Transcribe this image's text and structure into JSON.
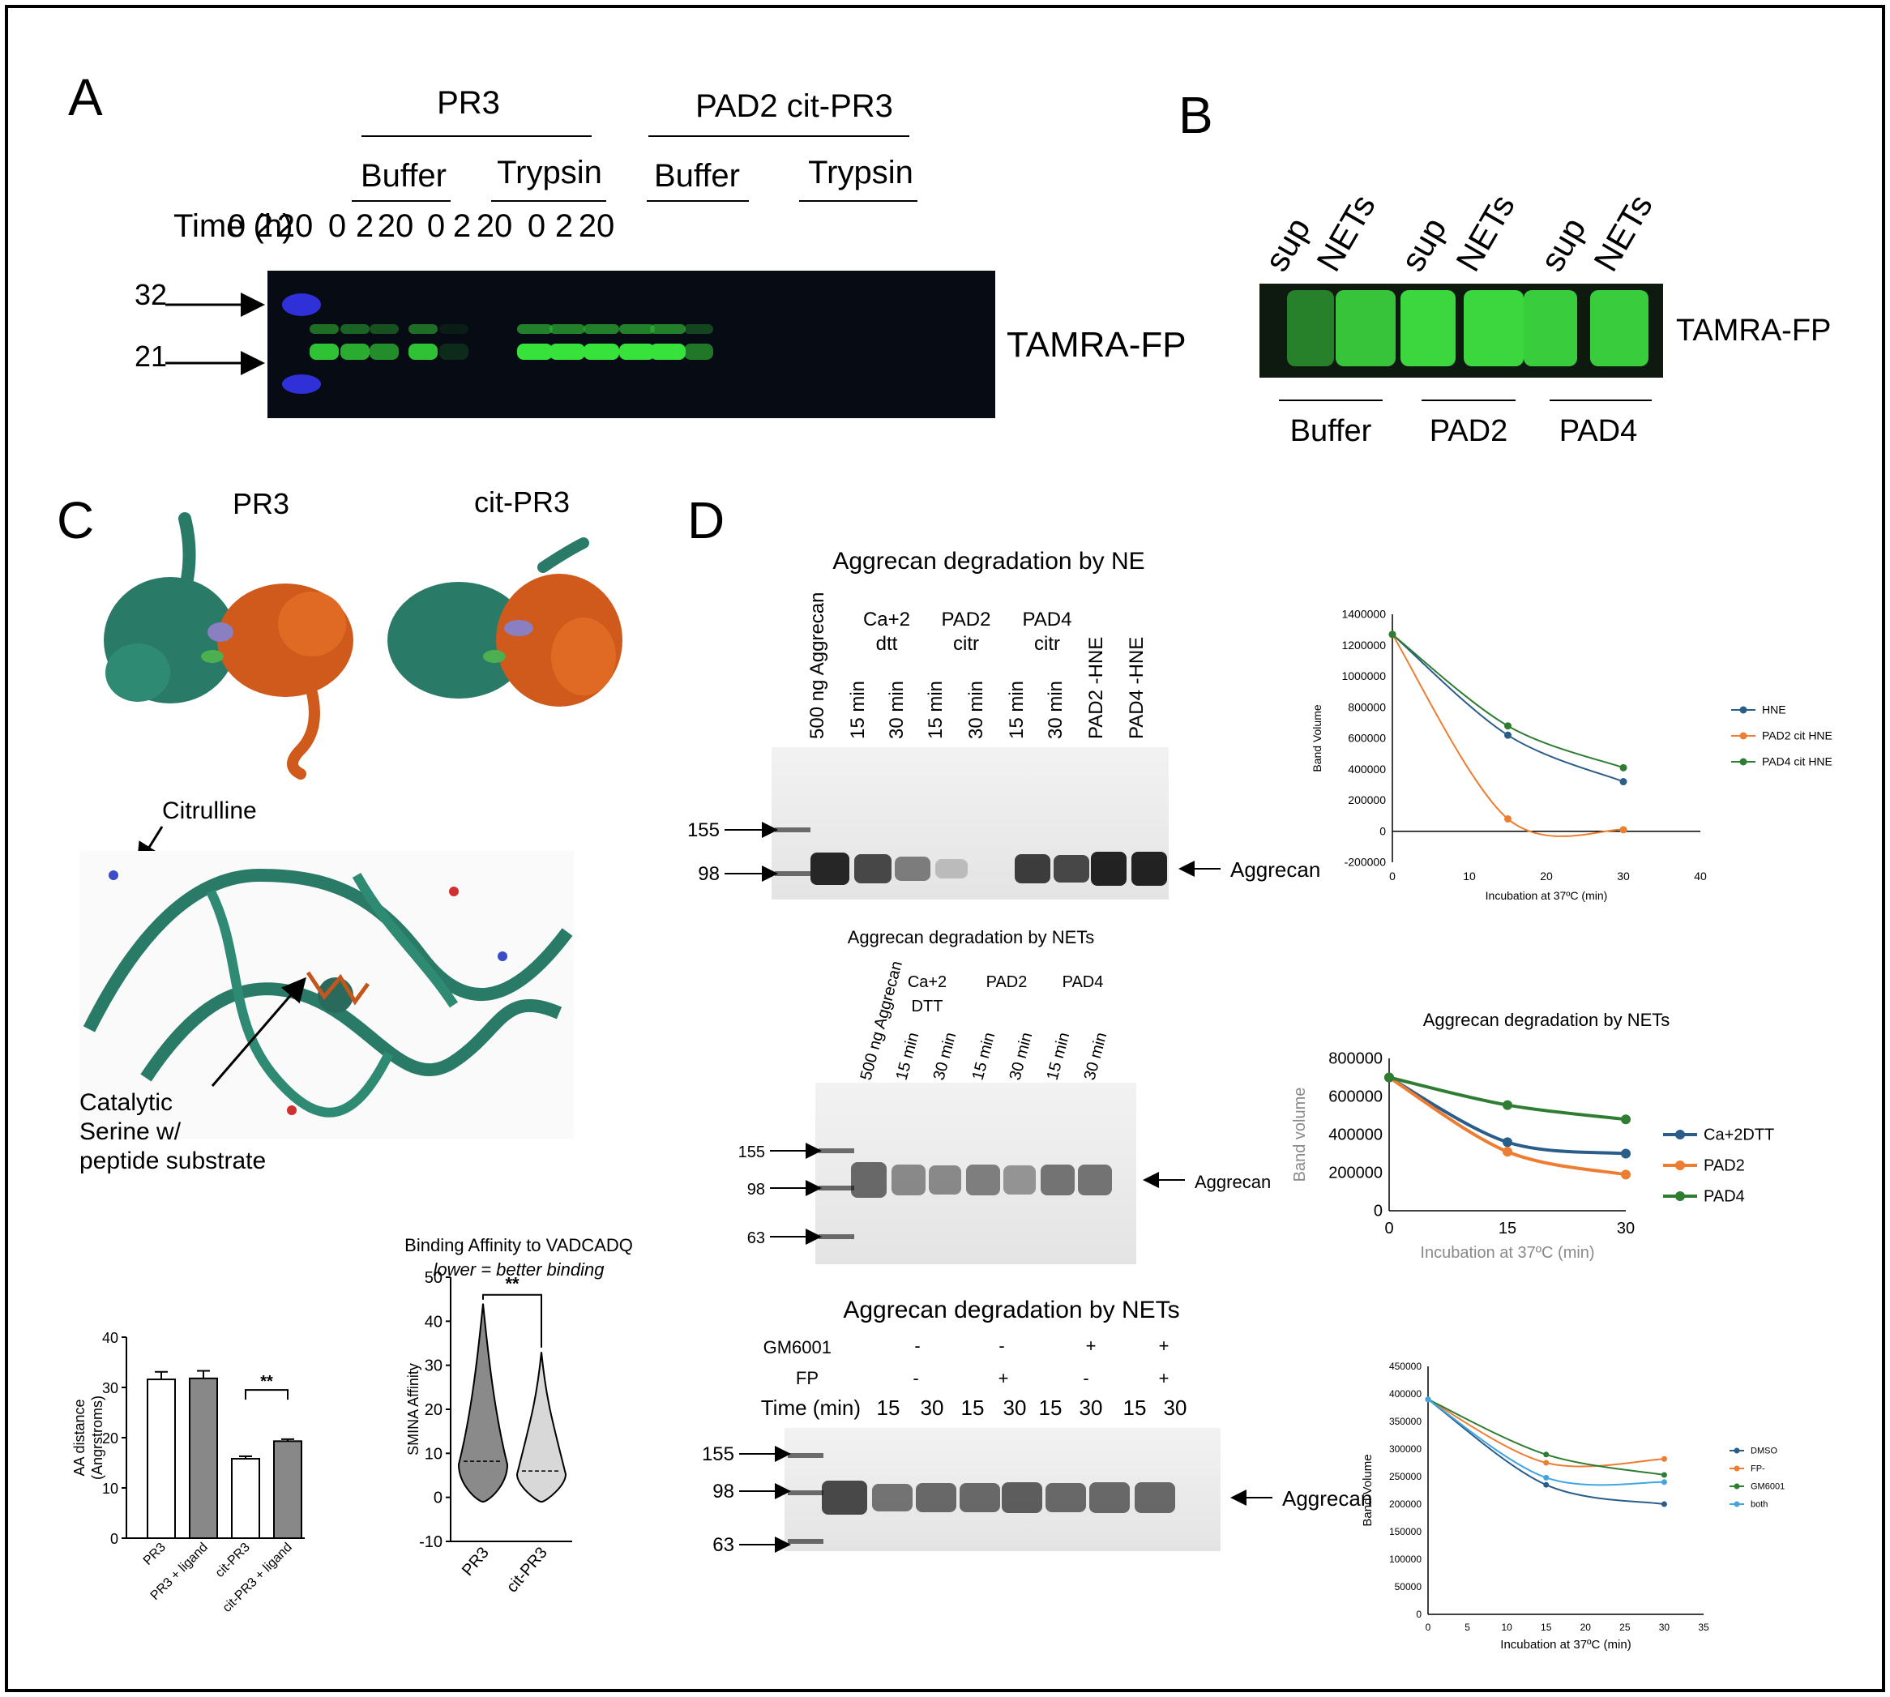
{
  "panelA": {
    "letter": "A",
    "group1": "PR3",
    "group2": "PAD2 cit-PR3",
    "sub_buffer": "Buffer",
    "sub_trypsin": "Trypsin",
    "time_label": "Time (h)",
    "times": [
      "0",
      "2",
      "20",
      "0",
      "2",
      "20",
      "0",
      "2",
      "20",
      "0",
      "2",
      "20"
    ],
    "mw_32": "32",
    "mw_21": "21",
    "probe": "TAMRA-FP",
    "band_intensity": [
      0.85,
      0.75,
      0.6,
      0.85,
      0.15,
      0.0,
      1.0,
      1.0,
      1.0,
      1.0,
      1.0,
      0.5
    ]
  },
  "panelB": {
    "letter": "B",
    "lanes": [
      "sup",
      "NETs",
      "sup",
      "NETs",
      "sup",
      "NETs"
    ],
    "probe": "TAMRA-FP",
    "groups": [
      "Buffer",
      "PAD2",
      "PAD4"
    ]
  },
  "panelC": {
    "letter": "C",
    "struct1": "PR3",
    "struct2": "cit-PR3",
    "citrulline": "Citrulline",
    "catalytic": [
      "Catalytic",
      "Serine w/",
      "peptide substrate"
    ],
    "bar_chart": {
      "type": "bar",
      "ylabel": "AA distance\n(Angrstroms)",
      "ylabel1": "AA distance",
      "ylabel2": "(Angrstroms)",
      "ylim": [
        0,
        40
      ],
      "yticks": [
        "0",
        "10",
        "20",
        "30",
        "40"
      ],
      "categories": [
        "PR3",
        "PR3 + ligand",
        "cit-PR3",
        "cit-PR3 + ligand"
      ],
      "values": [
        31.6,
        31.8,
        15.8,
        19.3
      ],
      "errors": [
        1.5,
        1.5,
        0.5,
        0.4
      ],
      "fills": [
        "#ffffff",
        "#888888",
        "#ffffff",
        "#888888"
      ],
      "significance": "**"
    },
    "violin": {
      "type": "violin",
      "title": "Binding Affinity to VADCADQ",
      "subtitle": "lower = better binding",
      "ylabel": "SMINA Affinity",
      "ylim": [
        -10,
        50
      ],
      "yticks": [
        "-10",
        "0",
        "10",
        "20",
        "30",
        "40",
        "50"
      ],
      "categories": [
        "PR3",
        "cit-PR3"
      ],
      "medians": [
        8.2,
        6.0
      ],
      "maxima": [
        44,
        33
      ],
      "significance": "**"
    }
  },
  "panelD": {
    "letter": "D",
    "gel1": {
      "title": "Aggrecan degradation by NE",
      "lanes": [
        "500 ng Aggrecan",
        "15 min",
        "30 min",
        "15 min",
        "30 min",
        "15 min",
        "30 min",
        "PAD2 -HNE",
        "PAD4 -HNE"
      ],
      "groups": [
        [
          "Ca+2",
          "dtt"
        ],
        [
          "PAD2",
          "citr"
        ],
        [
          "PAD4",
          "citr"
        ]
      ],
      "markers": [
        "155",
        "98"
      ],
      "band_label": "Aggrecan"
    },
    "gel2": {
      "title": "Aggrecan degradation by NETs",
      "lanes": [
        "500 ng Aggrecan",
        "15 min",
        "30 min",
        "15 min",
        "30 min",
        "15 min",
        "30 min"
      ],
      "groups": [
        [
          "Ca+2",
          "DTT"
        ],
        [
          "PAD2"
        ],
        [
          "PAD4"
        ]
      ],
      "markers": [
        "155",
        "98",
        "63"
      ],
      "band_label": "Aggrecan"
    },
    "gel3": {
      "title": "Aggrecan degradation by NETs",
      "row1_label": "GM6001",
      "row1": [
        "-",
        "-",
        "+",
        "+"
      ],
      "row2_label": "FP",
      "row2": [
        "-",
        "+",
        "-",
        "+"
      ],
      "time_label": "Time (min)",
      "times": [
        "15",
        "30",
        "15",
        "30",
        "15",
        "30",
        "15",
        "30"
      ],
      "markers": [
        "155",
        "98",
        "63"
      ],
      "band_label": "Aggrecan"
    },
    "chart1": {
      "type": "line",
      "xlabel": "Incubation at 37ºC (min)",
      "ylabel": "Band Volume",
      "xlim": [
        0,
        40
      ],
      "ylim": [
        -200000,
        1400000
      ],
      "xticks": [
        "0",
        "10",
        "20",
        "30",
        "40"
      ],
      "yticks": [
        "-200000",
        "0",
        "200000",
        "400000",
        "600000",
        "800000",
        "1000000",
        "1200000",
        "1400000"
      ],
      "x": [
        0,
        15,
        30
      ],
      "series": [
        {
          "name": "HNE",
          "values": [
            1270000,
            620000,
            320000
          ],
          "color": "#2b5d8a"
        },
        {
          "name": "PAD2 cit HNE",
          "values": [
            1270000,
            80000,
            10000
          ],
          "color": "#ed7d31"
        },
        {
          "name": "PAD4 cit HNE",
          "values": [
            1270000,
            680000,
            410000
          ],
          "color": "#2e7d32"
        }
      ]
    },
    "chart2": {
      "type": "line",
      "title": "Aggrecan degradation by NETs",
      "xlabel": "Incubation at 37ºC (min)",
      "ylabel": "Band volume",
      "xlim": [
        0,
        30
      ],
      "ylim": [
        0,
        800000
      ],
      "xticks": [
        "0",
        "15",
        "30"
      ],
      "yticks": [
        "0",
        "200000",
        "400000",
        "600000",
        "800000"
      ],
      "x": [
        0,
        15,
        30
      ],
      "series": [
        {
          "name": "Ca+2DTT",
          "values": [
            700000,
            360000,
            300000
          ],
          "color": "#2b5d8a"
        },
        {
          "name": "PAD2",
          "values": [
            700000,
            310000,
            190000
          ],
          "color": "#ed7d31"
        },
        {
          "name": "PAD4",
          "values": [
            700000,
            555000,
            480000
          ],
          "color": "#2e7d32"
        }
      ]
    },
    "chart3": {
      "type": "line",
      "xlabel": "Incubation at 37ºC (min)",
      "ylabel": "Band Volume",
      "xlim": [
        0,
        35
      ],
      "ylim": [
        0,
        450000
      ],
      "xticks": [
        "0",
        "5",
        "10",
        "15",
        "20",
        "25",
        "30",
        "35"
      ],
      "yticks": [
        "0",
        "50000",
        "100000",
        "150000",
        "200000",
        "250000",
        "300000",
        "350000",
        "400000",
        "450000"
      ],
      "x": [
        0,
        15,
        30
      ],
      "series": [
        {
          "name": "DMSO",
          "values": [
            390000,
            235000,
            200000
          ],
          "color": "#2b5d8a"
        },
        {
          "name": "FP-",
          "values": [
            390000,
            275000,
            282000
          ],
          "color": "#ed7d31"
        },
        {
          "name": "GM6001",
          "values": [
            390000,
            290000,
            253000
          ],
          "color": "#2e7d32"
        },
        {
          "name": "both",
          "values": [
            390000,
            248000,
            240000
          ],
          "color": "#42a5e0"
        }
      ]
    }
  }
}
